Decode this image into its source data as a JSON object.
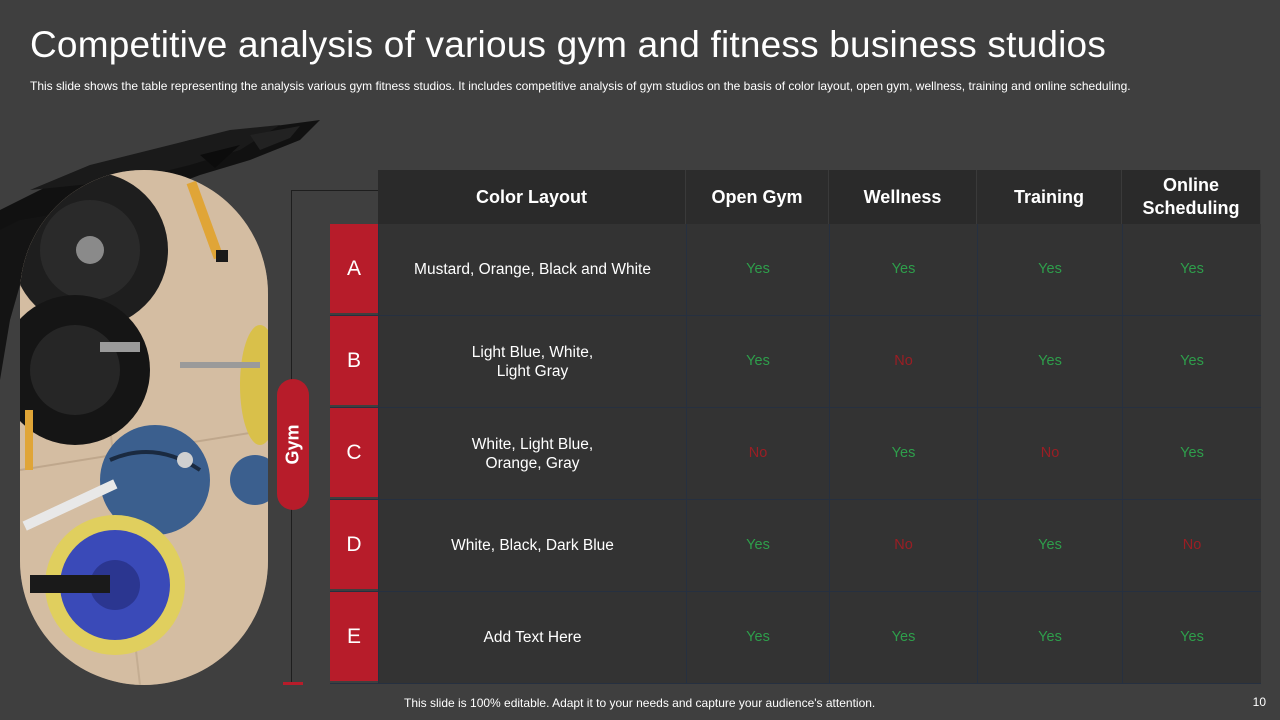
{
  "slide": {
    "title": "Competitive analysis of various gym and fitness business studios",
    "subtitle": "This slide shows the table representing  the analysis various  gym fitness studios. It includes competitive  analysis of gym studios on the basis of color layout, open gym, wellness, training and online scheduling.",
    "side_label": "Gym",
    "footer": "This slide is 100% editable. Adapt it to your needs and capture your audience's attention.",
    "page_number": "10"
  },
  "table": {
    "headers": [
      "Color Layout",
      "Open Gym",
      "Wellness",
      "Training",
      "Online Scheduling"
    ],
    "rows": [
      {
        "letter": "A",
        "color_layout": "Mustard, Orange, Black and White",
        "open_gym": "Yes",
        "wellness": "Yes",
        "training": "Yes",
        "online_scheduling": "Yes"
      },
      {
        "letter": "B",
        "color_layout": "Light Blue, White, Light Gray",
        "open_gym": "Yes",
        "wellness": "No",
        "training": "Yes",
        "online_scheduling": "Yes"
      },
      {
        "letter": "C",
        "color_layout": "White, Light Blue, Orange, Gray",
        "open_gym": "No",
        "wellness": "Yes",
        "training": "No",
        "online_scheduling": "Yes"
      },
      {
        "letter": "D",
        "color_layout": "White, Black, Dark Blue",
        "open_gym": "Yes",
        "wellness": "No",
        "training": "Yes",
        "online_scheduling": "No"
      },
      {
        "letter": "E",
        "color_layout": "Add Text Here",
        "open_gym": "Yes",
        "wellness": "Yes",
        "training": "Yes",
        "online_scheduling": "Yes"
      }
    ]
  },
  "colors": {
    "background": "#3f3f3f",
    "accent_red": "#b71c2a",
    "yes_green": "#2e9e4b",
    "no_red": "#9a1e24",
    "header_bg": "#2c2c2c"
  },
  "image": {
    "icon": "gym-equipment-photo"
  }
}
